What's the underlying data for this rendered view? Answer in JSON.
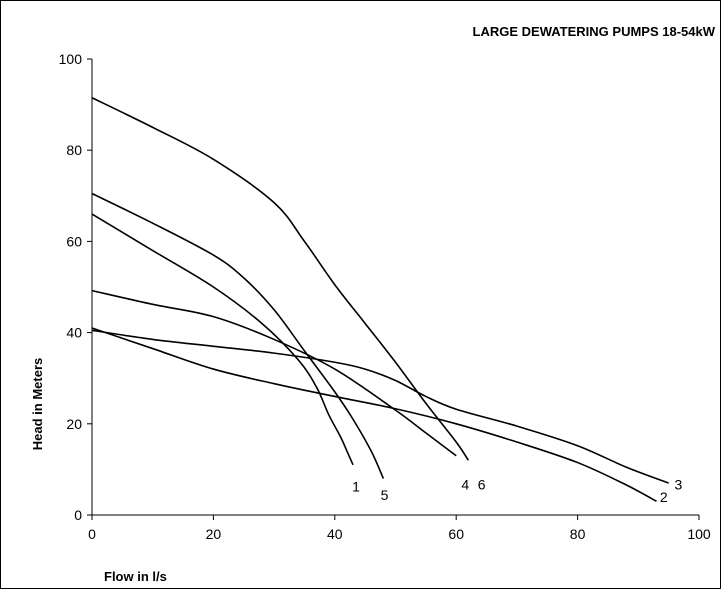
{
  "chart_data": {
    "type": "line",
    "title": "LARGE DEWATERING PUMPS 18-54kW",
    "xlabel": "Flow in l/s",
    "ylabel": "Head in Meters",
    "xlim": [
      0,
      100
    ],
    "ylim": [
      0,
      100
    ],
    "x_ticks": [
      "0",
      "20",
      "40",
      "60",
      "80",
      "100"
    ],
    "y_ticks": [
      "0",
      "20",
      "40",
      "60",
      "80",
      "100"
    ],
    "grid": false,
    "legend": "none",
    "series": [
      {
        "name": "1",
        "label_at": [
          43.5,
          5.1
        ],
        "x": [
          0,
          10,
          20,
          28,
          34,
          37,
          39,
          41,
          42,
          43
        ],
        "y": [
          66,
          58,
          50,
          42,
          34,
          28,
          22,
          17,
          14,
          11
        ]
      },
      {
        "name": "2",
        "label_at": [
          94.2,
          2.8
        ],
        "x": [
          0,
          10,
          20,
          30,
          40,
          50,
          60,
          70,
          80,
          88,
          93
        ],
        "y": [
          41,
          36.5,
          32,
          28.8,
          26,
          23.3,
          20,
          16,
          11.5,
          6.6,
          3
        ]
      },
      {
        "name": "3",
        "label_at": [
          96.6,
          5.6
        ],
        "x": [
          0,
          10,
          20,
          30,
          40,
          45,
          50,
          55,
          60,
          70,
          80,
          88,
          95
        ],
        "y": [
          40.5,
          38.5,
          37,
          35.5,
          33.5,
          32,
          29.5,
          26,
          23.2,
          19.5,
          15.2,
          10.5,
          7
        ]
      },
      {
        "name": "4",
        "label_at": [
          61.5,
          5.6
        ],
        "x": [
          0,
          10,
          20,
          30,
          40,
          50,
          55,
          60
        ],
        "y": [
          49.2,
          46.2,
          43.5,
          38.5,
          32,
          23,
          18,
          13
        ]
      },
      {
        "name": "5",
        "label_at": [
          48.2,
          3.3
        ],
        "x": [
          0,
          10,
          20,
          25,
          30,
          35,
          40,
          43,
          46,
          48
        ],
        "y": [
          70.5,
          64,
          57,
          52,
          45,
          36,
          27,
          21,
          14,
          8
        ]
      },
      {
        "name": "6",
        "label_at": [
          64.2,
          5.6
        ],
        "x": [
          0,
          10,
          20,
          30,
          35,
          40,
          45,
          50,
          55,
          60,
          62
        ],
        "y": [
          91.5,
          85,
          78,
          68.5,
          60,
          50.5,
          42,
          33.5,
          24.5,
          16,
          12
        ]
      }
    ]
  }
}
